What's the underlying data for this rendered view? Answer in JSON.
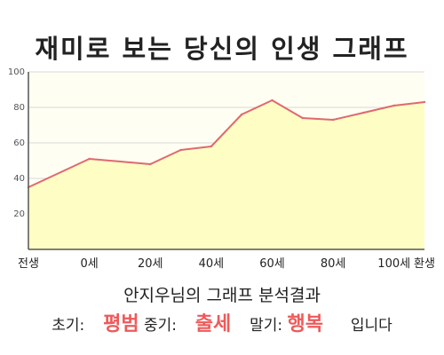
{
  "title": "재미로 보는 당신의 인생 그래프",
  "colors": {
    "fill": "#fefec4",
    "line": "#e06870",
    "plot_bg": "#fefef2",
    "grid": "#d8d8d8",
    "axis": "#555555",
    "highlight": "#ee5a5a"
  },
  "chart_data": {
    "type": "area",
    "title": "",
    "xlabel": "",
    "ylabel": "",
    "ylim": [
      0,
      100
    ],
    "xlim": [
      -20,
      110
    ],
    "yticks": [
      20,
      40,
      60,
      80,
      100
    ],
    "xtick_labels": [
      {
        "x": -20,
        "label": "전생"
      },
      {
        "x": 0,
        "label": "0세"
      },
      {
        "x": 20,
        "label": "20세"
      },
      {
        "x": 40,
        "label": "40세"
      },
      {
        "x": 60,
        "label": "60세"
      },
      {
        "x": 80,
        "label": "80세"
      },
      {
        "x": 100,
        "label": "100세"
      },
      {
        "x": 110,
        "label": "환생"
      }
    ],
    "grid": true,
    "series": [
      {
        "x": [
          -20,
          0,
          20,
          30,
          40,
          50,
          60,
          70,
          80,
          90,
          100,
          110
        ],
        "values": [
          35,
          51,
          48,
          56,
          58,
          76,
          84,
          74,
          73,
          77,
          81,
          83
        ]
      }
    ]
  },
  "result": {
    "title": "안지우님의 그래프 분석결과",
    "early_label": "초기:",
    "early_value": "평범",
    "middle_label": "중기:",
    "middle_value": "출세",
    "late_label": "말기:",
    "late_value": "행복",
    "suffix": "입니다"
  }
}
